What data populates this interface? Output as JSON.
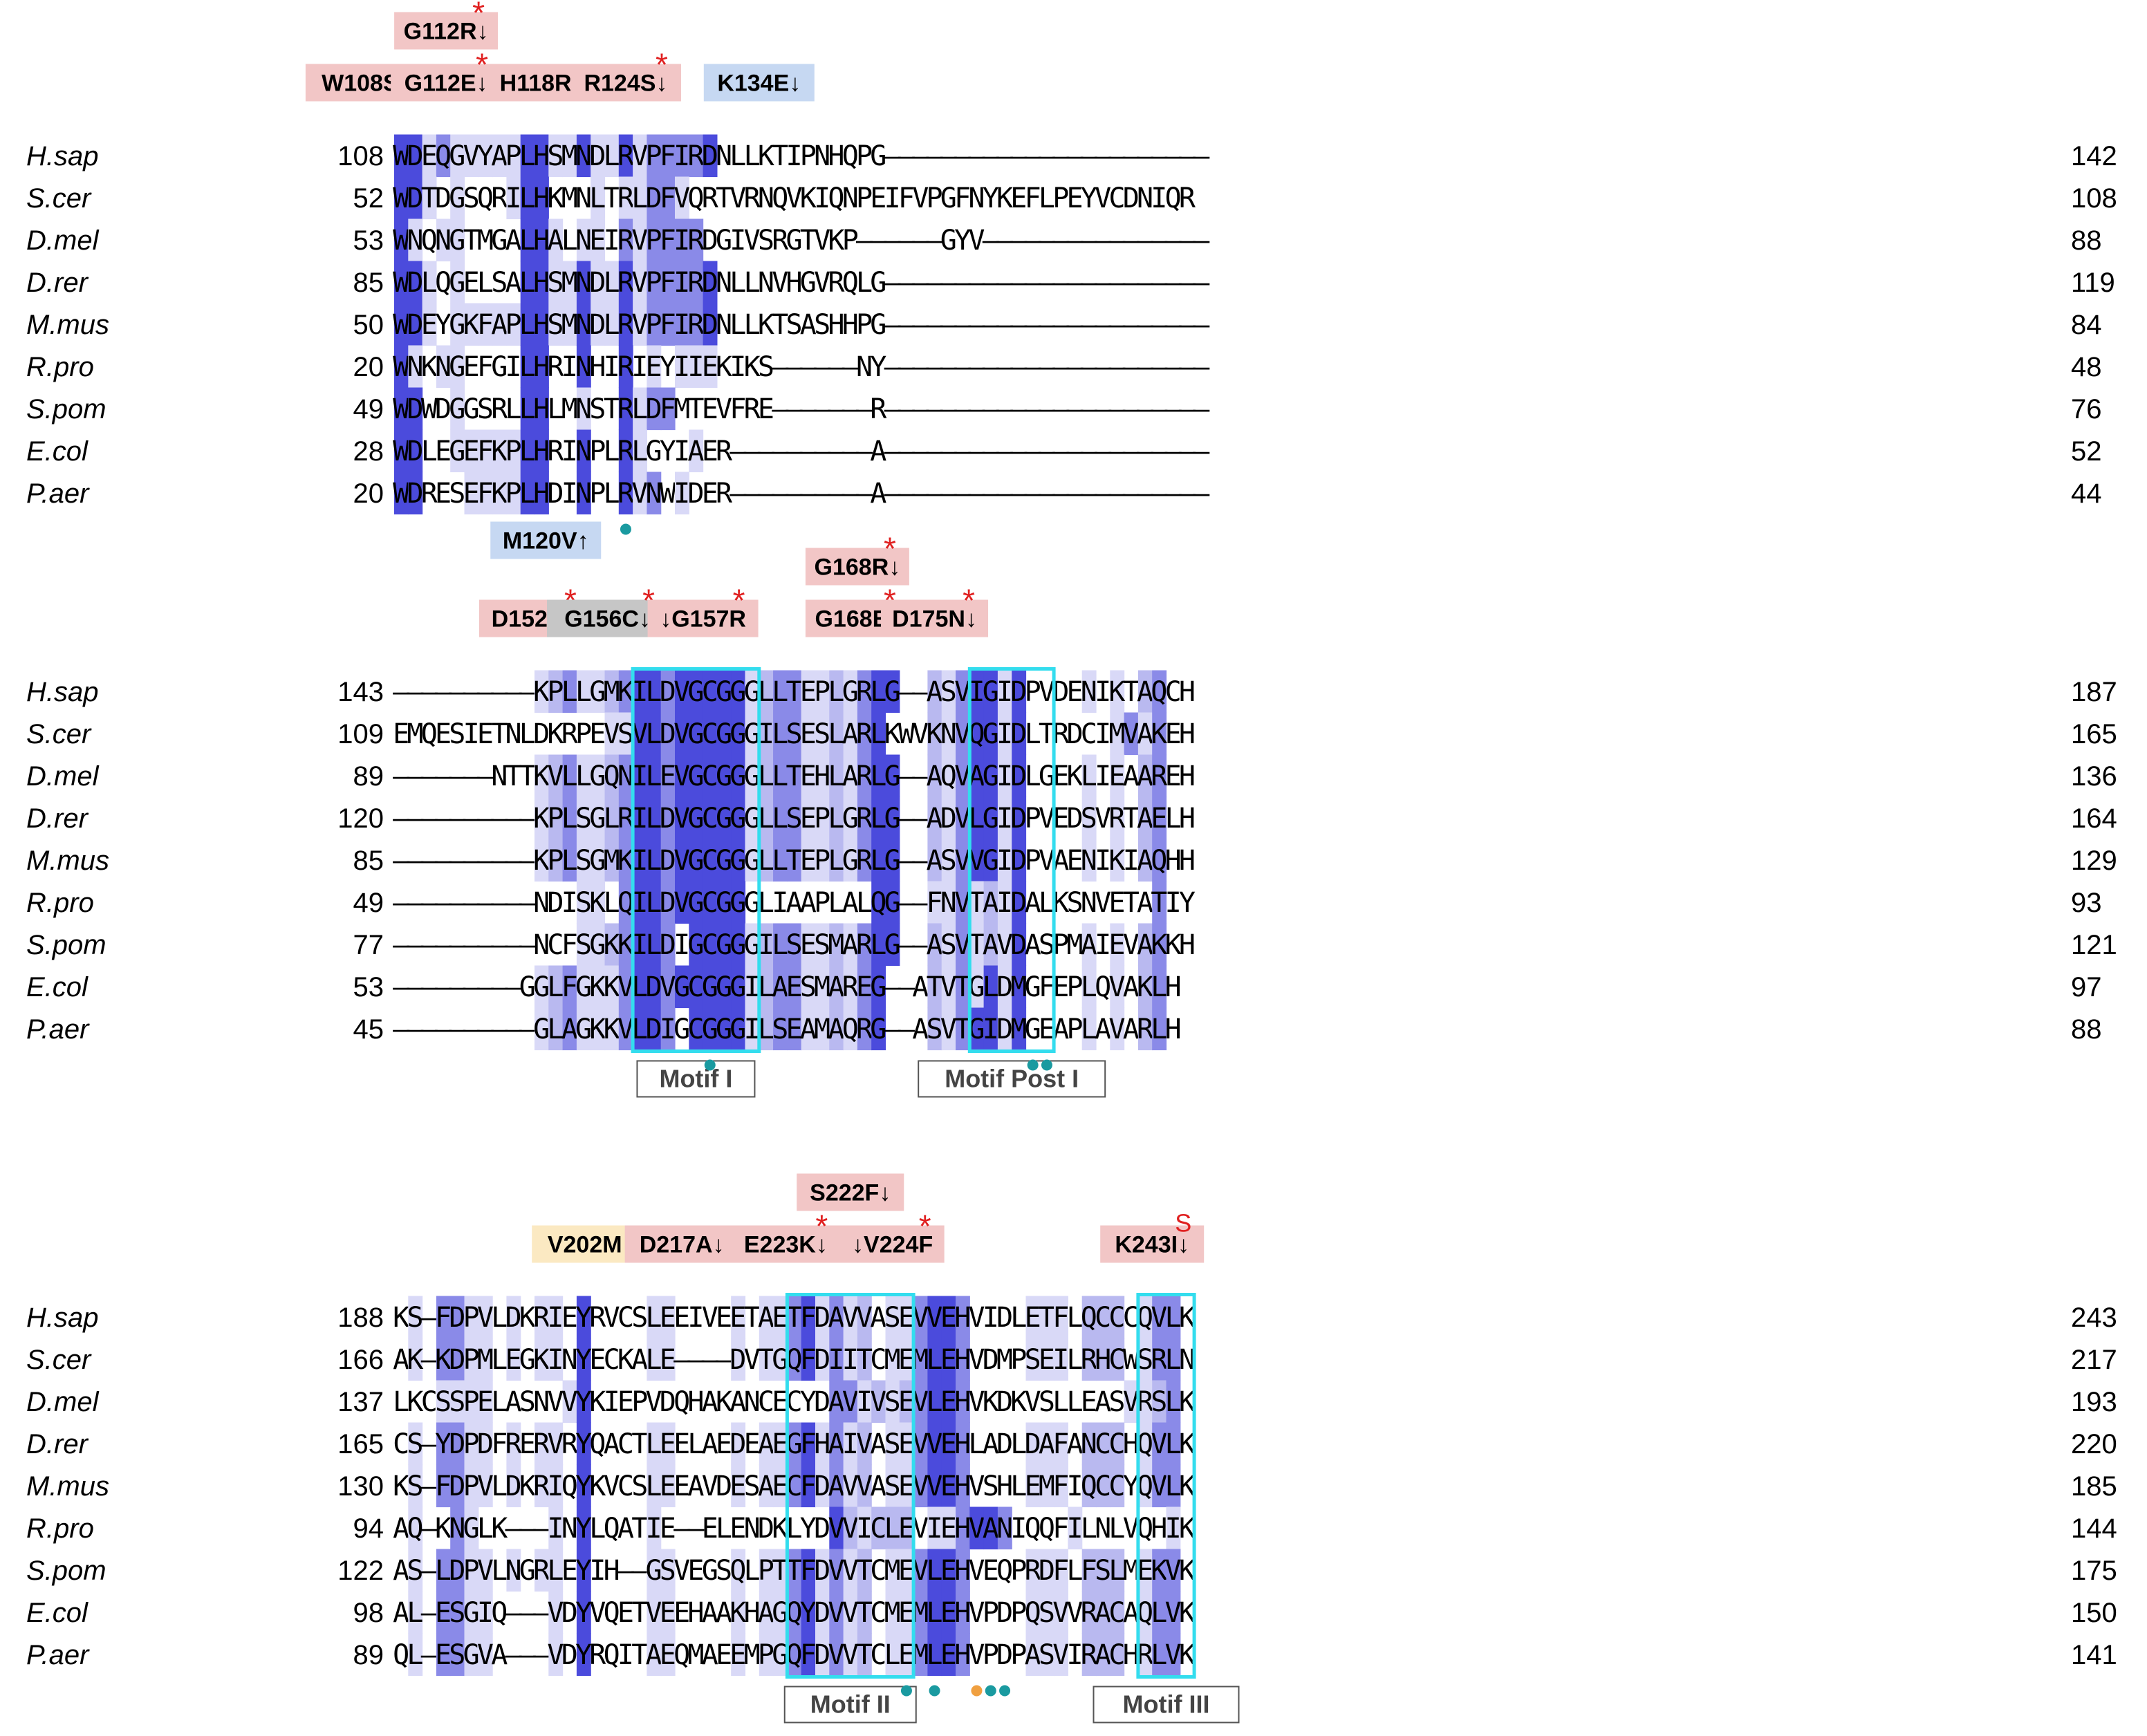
{
  "colors": {
    "conservation": [
      "#ffffff",
      "#d9d9f7",
      "#b9b9f0",
      "#8a8ae8",
      "#4b4bdc"
    ],
    "mutation_red": "#f2c6c6",
    "mutation_blue": "#c6d8f2",
    "mutation_gray": "#c6c6c6",
    "mutation_yellow": "#fbe9c2",
    "motif_box": "#33ddee",
    "dot_teal": "#1a9aa0",
    "dot_orange": "#f0a040",
    "star": "#e02020"
  },
  "species": [
    "H.sap",
    "S.cer",
    "D.mel",
    "D.rer",
    "M.mus",
    "R.pro",
    "S.pom",
    "E.col",
    "P.aer"
  ],
  "blocks": [
    {
      "rows": [
        {
          "start": "108",
          "end": "142",
          "seq": "WDEQGVYAPLHSMNDLRVPFIRDNLLKTIPNHQPG-----------------------",
          "shade": "44131111144114114133334000000000000000000000000000000000000"
        },
        {
          "start": "52",
          "end": "108",
          "seq": "WDTDGSQRILHKMNLTRLDFVQRTVRNQVKIQNPEIFVPGFNYKEFLPEYVCDNIQR",
          "shade": "44101000144000101133100000000000000000000000000000000000000"
        },
        {
          "start": "53",
          "end": "88",
          "seq": "WNQNGTMGALHALNEIRVPFIRDGIVSRGTVKP------GYV----------------",
          "shade": "41011000044101103133330000000000000000000000000000000000000"
        },
        {
          "start": "85",
          "end": "119",
          "seq": "WDLQGELSALHSMNDLRVPFIRDNLLNVHGVRQLG-----------------------",
          "shade": "44101000044114114133334000000000000000000000000000000000000"
        },
        {
          "start": "50",
          "end": "84",
          "seq": "WDEYGKFAPLHSMNDLRVPFIRDNLLKTSASHHPG-----------------------",
          "shade": "44101111144114114133334000000000000000000000000000000000000"
        },
        {
          "start": "20",
          "end": "48",
          "seq": "WNKNGEFGILHRINHIRIEYIIEKIKS------NY-----------------------",
          "shade": "41011000044004004010111000000000000000000000000000000000000"
        },
        {
          "start": "49",
          "end": "76",
          "seq": "WDWDGGSRLLHLMNSTRLDFMTEVFRE-------R-----------------------",
          "shade": "44001000044001004133000000000000000000000000000000000000000"
        },
        {
          "start": "28",
          "end": "52",
          "seq": "WDLEGEFKPLHRINPLRLGYIAER----------A-----------------------",
          "shade": "44001111144004004100010000000000000000000000000000000000000"
        },
        {
          "start": "20",
          "end": "44",
          "seq": "WDRESEFKPLHDINPLRVNWIDER----------A-----------------------",
          "shade": "44000111144004004130100000000000000000000000000000000000000"
        }
      ],
      "mutations": [
        {
          "label": "G112R↓",
          "color": "red",
          "star": true
        },
        {
          "label": "W108S↓",
          "color": "red",
          "star": false
        },
        {
          "label": "G112E↓",
          "color": "red",
          "star": true
        },
        {
          "label": "H118R↓",
          "color": "red",
          "star": false
        },
        {
          "label": "R124S↓",
          "color": "red",
          "star": true
        },
        {
          "label": "K134E↓",
          "color": "blue",
          "star": false
        },
        {
          "label": "M120V↑",
          "color": "blue",
          "star": false
        }
      ],
      "motifs": []
    },
    {
      "rows": [
        {
          "start": "143",
          "end": "187",
          "seq": "----------KPLLGMKILDVGCGGGLLTEPLGRLG--ASVIGIDPVDENIKTAQCH",
          "shade": "00000000001231123443444441233112134400213441400001010230040"
        },
        {
          "start": "109",
          "end": "165",
          "seq": "EMQESIETNLDKRPEVSVLDVGCGGGILSESLARLKWVKNVQGIDLTRDCIMVAKEH",
          "shade": "00000000000000011443444441233112134000213441400000013130040"
        },
        {
          "start": "89",
          "end": "136",
          "seq": "-------NTTKVLLGQNILEVGCGGGLLTEHLARLG--AQVAGIDLGEKLIEAAREH",
          "shade": "00000000001231123443444441233112134400213441400001010230040"
        },
        {
          "start": "120",
          "end": "164",
          "seq": "----------KPLSGLRILDVGCGGGLLSEPLGRLG--ADVLGIDPVEDSVRTAELH",
          "shade": "00000000001231123443444441233112134400213441400001010230040"
        },
        {
          "start": "85",
          "end": "129",
          "seq": "----------KPLSGMKILDVGCGGGLLTEPLGRLG--ASVVGIDPVAENIKIAQHH",
          "shade": "00000000001231123443444441233112134400213441400001010230040"
        },
        {
          "start": "49",
          "end": "93",
          "seq": "----------NDISKLQILDVGCGGGLIAAPLALQG--FNVTAIDALKSNVETATIY",
          "shade": "00000000000001103443444440000000004400113121400000000030000"
        },
        {
          "start": "77",
          "end": "121",
          "seq": "----------NCFSGKKILDIGCGGGILSESMARLG--ASVTAVDASPMAIEVAKKH",
          "shade": "00000000000001123443044441233112134400213121400001010230040"
        },
        {
          "start": "53",
          "end": "97",
          "seq": "---------GGLFGKKVLDVGCGGGILAESMAREG--ATVTGLDMGFEPLQVAKLH",
          "shade": "00000000001231113443444441233112134400213141400001010230040"
        },
        {
          "start": "45",
          "end": "88",
          "seq": "----------GLAGKKVLDIGCGGGILSEAMAQRG--ASVTGIDMGEAPLAVARLH",
          "shade": "00000000001231113443044441233112134400213441400001010230040"
        }
      ],
      "mutations": [
        {
          "label": "G168R↓",
          "color": "red",
          "star": true
        },
        {
          "label": "D152G↓",
          "color": "red",
          "star": true
        },
        {
          "label": "G156C↓",
          "color": "gray",
          "star": true
        },
        {
          "label": "↓G157R",
          "color": "red",
          "star": true
        },
        {
          "label": "G168E↓",
          "color": "red",
          "star": true
        },
        {
          "label": "D175N↓",
          "color": "red",
          "star": true
        }
      ],
      "motifs": [
        "Motif I",
        "Motif Post I"
      ]
    },
    {
      "rows": [
        {
          "start": "188",
          "end": "243",
          "seq": "KS-FDPVLDKRIEYRVCSLEEIVEETAETFDAVVASEVVEHVIDLETFLQCCCQVLK",
          "shade": "01033110101104000011000010113413120113443000011102220133004"
        },
        {
          "start": "166",
          "end": "217",
          "seq": "AK-KDPMLEGKINYECKALE----DVTGQFDIITCMEMLEHVDMPSEILRHCWSRLN",
          "shade": "01033110101104000011000010113413120113443000011102220133004"
        },
        {
          "start": "137",
          "end": "193",
          "seq": "LKCSSPELASNVVYKIEPVDQHAKANCECYDAVIVSEVLEHVKDKVSLLEASVRSLK",
          "shade": "00011110000014000000000000000003312123443000000000001123004"
        },
        {
          "start": "165",
          "end": "220",
          "seq": "CS-YDPDFRERVRYQACTLEELAEDEAEGFHAIVASEVVEHLADLDAFANCCHQVLK",
          "shade": "01033110101104000011000010113413120113443000011102220133004"
        },
        {
          "start": "130",
          "end": "185",
          "seq": "KS-FDPVLDKRIQYKVCSLEEAVDESAECFDAVVASEVVEHVSHLEMFIQCCYQVLK",
          "shade": "01033110101104000011000010113413120113443000011102220133004"
        },
        {
          "start": "94",
          "end": "144",
          "seq": "AQ-KNGLK---INYLQATIE--ELENDKLYDVVICLEVIEHVANIQQFILNLVQHIK",
          "shade": "01003100000104000010000000000004212220113443000010000001004"
        },
        {
          "start": "122",
          "end": "175",
          "seq": "AS-LDPVLNGRLEYIH--GSVEGSQLPTTFDVVTCMEVLEHVEQPRDFLFSLMEKVK",
          "shade": "01033110101104000011000010113413120113443000011102220133004"
        },
        {
          "start": "98",
          "end": "150",
          "seq": "AL-ESGIQ---VDYVQETVEEHAAKHAGQYDVVTCMEMLEHVPDPQSVVRACAQLVK",
          "shade": "01033110101104000011000010113413120113443000011102220133004"
        },
        {
          "start": "89",
          "end": "141",
          "seq": "QL-ESGVA---VDYRQITAEQMAEEMPGQFDVVTCLEMLEHVPDPASVIRACHRLVK",
          "shade": "01033110101104000011000010113413120113443000011102220133004"
        }
      ],
      "mutations": [
        {
          "label": "S222F↓",
          "color": "red",
          "star": false
        },
        {
          "label": "V202M↓",
          "color": "yellow",
          "star": false
        },
        {
          "label": "D217A↓",
          "color": "red",
          "star": false
        },
        {
          "label": "E223K↓",
          "color": "red",
          "star": true
        },
        {
          "label": "↓V224F",
          "color": "red",
          "star": true
        },
        {
          "label": "K243I↓",
          "color": "red",
          "star": false,
          "mark": "S"
        }
      ],
      "motifs": [
        "Motif II",
        "Motif III"
      ]
    }
  ]
}
